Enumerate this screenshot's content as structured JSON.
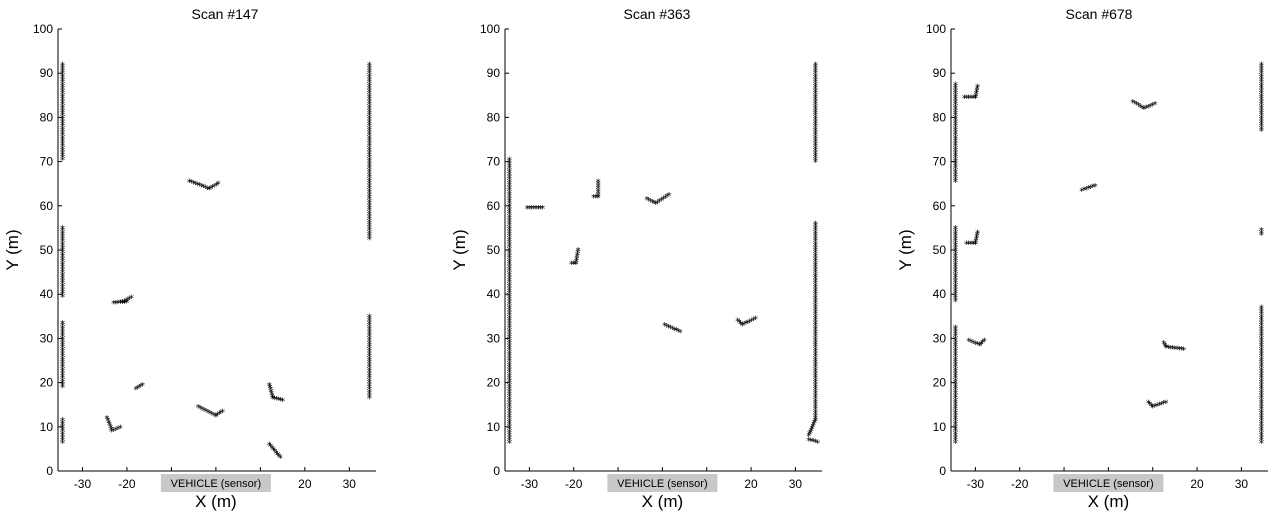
{
  "vehicle_label": "VEHICLE (sensor)",
  "colors": {
    "points": "#000000",
    "badge": "#c8c8c8",
    "background": "#ffffff"
  },
  "chart_data": [
    {
      "type": "scatter",
      "title": "Scan #147",
      "xlabel": "X (m)",
      "ylabel": "Y (m)",
      "xlim": [
        -35.5,
        36
      ],
      "ylim": [
        0,
        100
      ],
      "xticks": [
        -30,
        -20,
        -10,
        0,
        10,
        20,
        30
      ],
      "yticks": [
        0,
        10,
        20,
        30,
        40,
        50,
        60,
        70,
        80,
        90,
        100
      ],
      "grid": false,
      "marker": "*",
      "segments": [
        {
          "x": [
            -34.5,
            -34.5
          ],
          "y": [
            70.5,
            92
          ]
        },
        {
          "x": [
            -34.5,
            -34.5
          ],
          "y": [
            39.5,
            55
          ]
        },
        {
          "x": [
            -34.5,
            -34.5
          ],
          "y": [
            19,
            33.5
          ]
        },
        {
          "x": [
            -34.5,
            -34.5
          ],
          "y": [
            6.5,
            11.5
          ]
        },
        {
          "x": [
            34.5,
            34.5
          ],
          "y": [
            52.5,
            92
          ]
        },
        {
          "x": [
            34.5,
            34.5
          ],
          "y": [
            16.5,
            35
          ]
        },
        {
          "x": [
            -21,
            -19
          ],
          "y": [
            38.2,
            39.2
          ]
        },
        {
          "x": [
            -23,
            -20
          ],
          "y": [
            38,
            38.2
          ]
        },
        {
          "x": [
            -18,
            -16.5
          ],
          "y": [
            18.5,
            19.5
          ]
        },
        {
          "x": [
            -24.5,
            -23.5
          ],
          "y": [
            12,
            9.5
          ]
        },
        {
          "x": [
            -23.5,
            -21.5
          ],
          "y": [
            9,
            9.8
          ]
        },
        {
          "x": [
            -6,
            -1.5
          ],
          "y": [
            65.5,
            63.8
          ]
        },
        {
          "x": [
            -1.5,
            0.5
          ],
          "y": [
            63.8,
            65
          ]
        },
        {
          "x": [
            -4,
            0
          ],
          "y": [
            14.5,
            12.5
          ]
        },
        {
          "x": [
            0,
            1.5
          ],
          "y": [
            12.5,
            13.5
          ]
        },
        {
          "x": [
            12,
            12.8
          ],
          "y": [
            19.5,
            16.5
          ]
        },
        {
          "x": [
            12.8,
            15
          ],
          "y": [
            16.5,
            16
          ]
        },
        {
          "x": [
            12,
            14.5
          ],
          "y": [
            6,
            3
          ]
        }
      ]
    },
    {
      "type": "scatter",
      "title": "Scan #363",
      "xlabel": "X (m)",
      "ylabel": "Y (m)",
      "xlim": [
        -35.5,
        36
      ],
      "ylim": [
        0,
        100
      ],
      "xticks": [
        -30,
        -20,
        -10,
        0,
        10,
        20,
        30
      ],
      "yticks": [
        0,
        10,
        20,
        30,
        40,
        50,
        60,
        70,
        80,
        90,
        100
      ],
      "grid": false,
      "marker": "*",
      "segments": [
        {
          "x": [
            -34.5,
            -34.5
          ],
          "y": [
            6.5,
            70.5
          ]
        },
        {
          "x": [
            34.5,
            34.5
          ],
          "y": [
            70,
            92
          ]
        },
        {
          "x": [
            34.5,
            34.5
          ],
          "y": [
            11.5,
            56
          ]
        },
        {
          "x": [
            34.5,
            33
          ],
          "y": [
            11.5,
            8
          ]
        },
        {
          "x": [
            33,
            35
          ],
          "y": [
            7,
            6.5
          ]
        },
        {
          "x": [
            -30.5,
            -27
          ],
          "y": [
            59.5,
            59.5
          ]
        },
        {
          "x": [
            -20.5,
            -19.5
          ],
          "y": [
            47,
            47
          ]
        },
        {
          "x": [
            -19.5,
            -19
          ],
          "y": [
            47,
            50
          ]
        },
        {
          "x": [
            -15.5,
            -14.5
          ],
          "y": [
            62,
            62
          ]
        },
        {
          "x": [
            -14.5,
            -14.5
          ],
          "y": [
            62,
            65.5
          ]
        },
        {
          "x": [
            -3.5,
            -1.5
          ],
          "y": [
            61.5,
            60.5
          ]
        },
        {
          "x": [
            -1.5,
            1.5
          ],
          "y": [
            60.5,
            62.5
          ]
        },
        {
          "x": [
            0.5,
            4
          ],
          "y": [
            33,
            31.5
          ]
        },
        {
          "x": [
            17,
            18
          ],
          "y": [
            34,
            33
          ]
        },
        {
          "x": [
            18,
            21
          ],
          "y": [
            33,
            34.5
          ]
        }
      ]
    },
    {
      "type": "scatter",
      "title": "Scan #678",
      "xlabel": "X (m)",
      "ylabel": "Y (m)",
      "xlim": [
        -35.5,
        36
      ],
      "ylim": [
        0,
        100
      ],
      "xticks": [
        -30,
        -20,
        -10,
        0,
        10,
        20,
        30
      ],
      "yticks": [
        0,
        10,
        20,
        30,
        40,
        50,
        60,
        70,
        80,
        90,
        100
      ],
      "grid": false,
      "marker": "*",
      "segments": [
        {
          "x": [
            -34.5,
            -34.5
          ],
          "y": [
            65.5,
            87.5
          ]
        },
        {
          "x": [
            -34.5,
            -34.5
          ],
          "y": [
            38.5,
            55
          ]
        },
        {
          "x": [
            -34.5,
            -34.5
          ],
          "y": [
            6.5,
            32.5
          ]
        },
        {
          "x": [
            34.5,
            34.5
          ],
          "y": [
            77,
            92
          ]
        },
        {
          "x": [
            34.5,
            34.5
          ],
          "y": [
            53.5,
            54.5
          ]
        },
        {
          "x": [
            34.5,
            34.5
          ],
          "y": [
            6.5,
            37
          ]
        },
        {
          "x": [
            -32.5,
            -30
          ],
          "y": [
            84.5,
            84.5
          ]
        },
        {
          "x": [
            -30,
            -29.5
          ],
          "y": [
            84.5,
            87
          ]
        },
        {
          "x": [
            -32,
            -30
          ],
          "y": [
            51.5,
            51.5
          ]
        },
        {
          "x": [
            -30,
            -29.5
          ],
          "y": [
            51.5,
            54
          ]
        },
        {
          "x": [
            -31.5,
            -29
          ],
          "y": [
            29.5,
            28.5
          ]
        },
        {
          "x": [
            -29,
            -28
          ],
          "y": [
            28.5,
            29.5
          ]
        },
        {
          "x": [
            -6,
            -3
          ],
          "y": [
            63.5,
            64.5
          ]
        },
        {
          "x": [
            5.5,
            8
          ],
          "y": [
            83.5,
            82
          ]
        },
        {
          "x": [
            8,
            10.5
          ],
          "y": [
            82,
            83
          ]
        },
        {
          "x": [
            12.5,
            13
          ],
          "y": [
            29,
            28
          ]
        },
        {
          "x": [
            13,
            17
          ],
          "y": [
            28,
            27.5
          ]
        },
        {
          "x": [
            9,
            10
          ],
          "y": [
            15.5,
            14.5
          ]
        },
        {
          "x": [
            10,
            13
          ],
          "y": [
            14.5,
            15.5
          ]
        }
      ]
    }
  ]
}
